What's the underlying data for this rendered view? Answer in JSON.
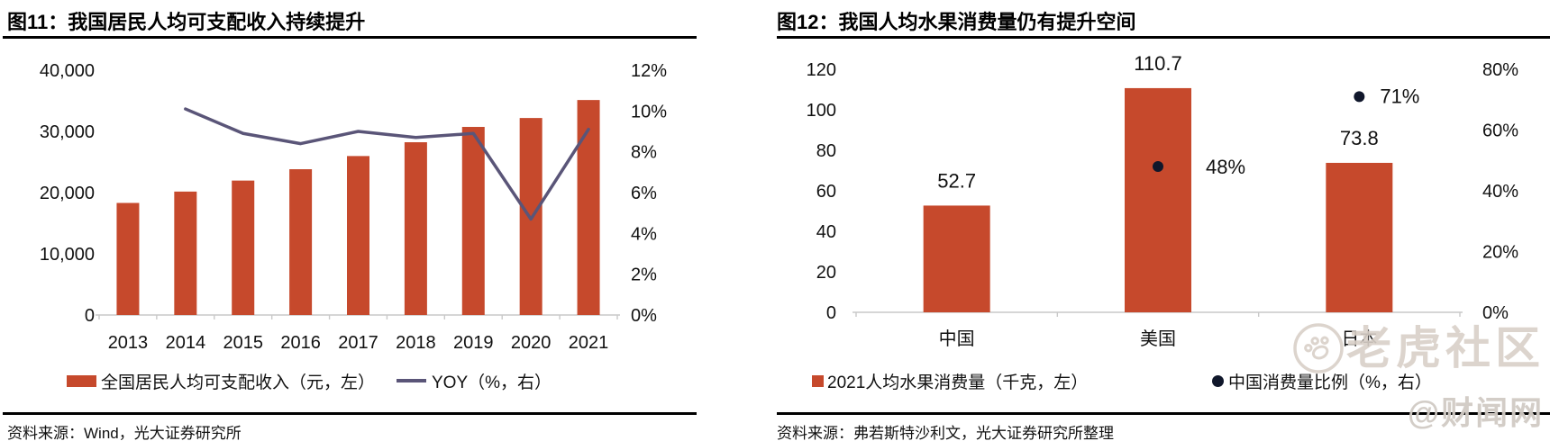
{
  "watermarks": {
    "community": "老虎社区",
    "site": "@财闻网"
  },
  "charts": [
    {
      "title": "图11：我国居民人均可支配收入持续提升",
      "source": "资料来源：Wind，光大证券研究所",
      "chart_data": {
        "type": "bar+line",
        "categories": [
          "2013",
          "2014",
          "2015",
          "2016",
          "2017",
          "2018",
          "2019",
          "2020",
          "2021"
        ],
        "series": [
          {
            "name": "全国居民人均可支配收入（元，左）",
            "type": "bar",
            "axis": "left",
            "color": "#C6492C",
            "values": [
              18311,
              20167,
              21966,
              23821,
              25974,
              28228,
              30733,
              32189,
              35128
            ]
          },
          {
            "name": "YOY（%，右）",
            "type": "line",
            "axis": "right",
            "color": "#5A5578",
            "values": [
              null,
              10.1,
              8.9,
              8.4,
              9.0,
              8.7,
              8.9,
              4.7,
              9.1
            ]
          }
        ],
        "left_axis": {
          "min": 0,
          "max": 40000,
          "tick_labels": [
            "40,000",
            "30,000",
            "20,000",
            "10,000",
            "0"
          ]
        },
        "right_axis": {
          "min": 0,
          "max": 12,
          "tick_labels": [
            "12%",
            "10%",
            "8%",
            "6%",
            "4%",
            "2%",
            "0%"
          ]
        },
        "grid": false,
        "legend_position": "bottom"
      }
    },
    {
      "title": "图12：我国人均水果消费量仍有提升空间",
      "source": "资料来源：弗若斯特沙利文，光大证券研究所整理",
      "chart_data": {
        "type": "bar+scatter",
        "categories": [
          "中国",
          "美国",
          "日本"
        ],
        "series": [
          {
            "name": "2021人均水果消费量（千克，左）",
            "type": "bar",
            "axis": "left",
            "color": "#C6492C",
            "values": [
              52.7,
              110.7,
              73.8
            ],
            "value_labels": [
              "52.7",
              "110.7",
              "73.8"
            ]
          },
          {
            "name": "中国消费量比例（%，右）",
            "type": "scatter",
            "axis": "right",
            "color": "#10172B",
            "values": [
              null,
              48,
              71
            ],
            "value_labels": [
              null,
              "48%",
              "71%"
            ]
          }
        ],
        "left_axis": {
          "min": 0,
          "max": 120,
          "tick_labels": [
            "120",
            "100",
            "80",
            "60",
            "40",
            "20",
            "0"
          ]
        },
        "right_axis": {
          "min": 0,
          "max": 80,
          "tick_labels": [
            "80%",
            "60%",
            "40%",
            "20%",
            "0%"
          ]
        },
        "grid": false,
        "legend_position": "bottom"
      }
    }
  ]
}
